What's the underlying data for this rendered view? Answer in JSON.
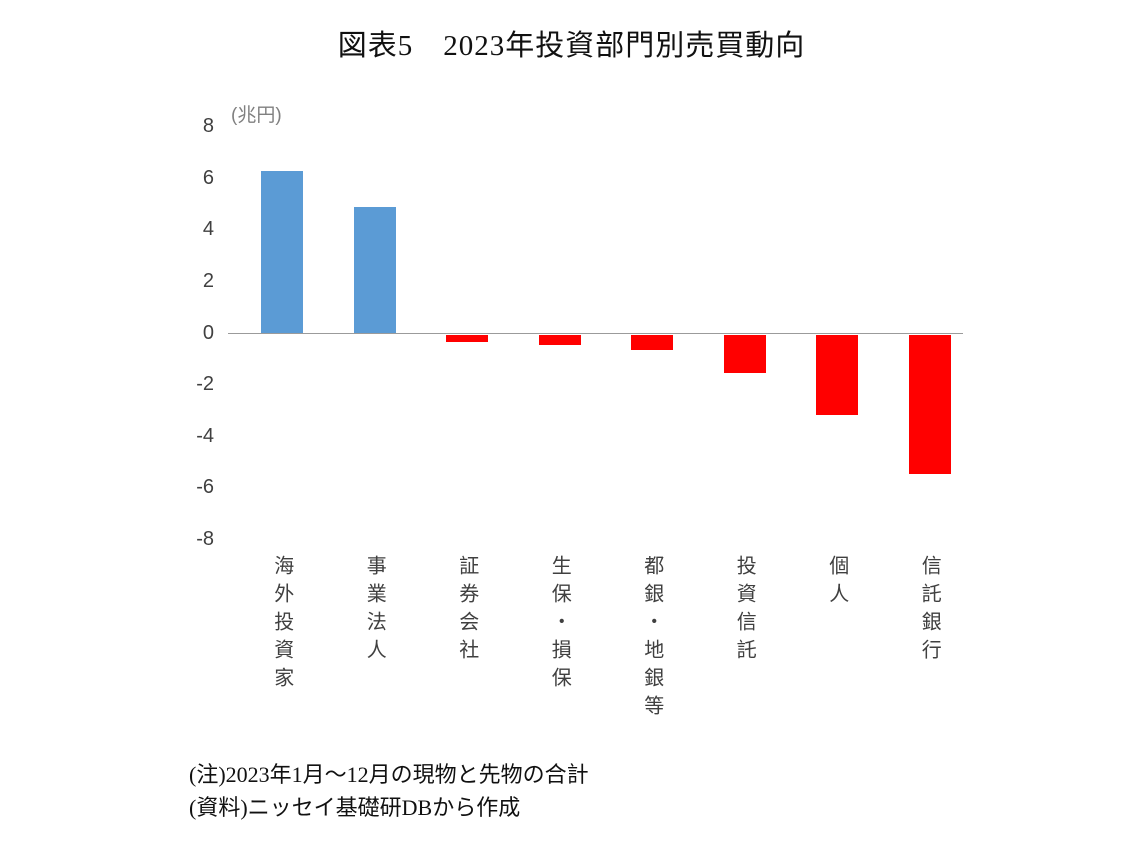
{
  "title": "図表5　2023年投資部門別売買動向",
  "unit_label": "(兆円)",
  "notes": [
    "(注)2023年1月～12月の現物と先物の合計",
    "(資料)ニッセイ基礎研DBから作成"
  ],
  "chart_data": {
    "type": "bar",
    "title": "図表5　2023年投資部門別売買動向",
    "ylabel": "兆円",
    "xlabel": "",
    "categories": [
      "海外投資家",
      "事業法人",
      "証券会社",
      "生保・損保",
      "都銀・地銀等",
      "投資信託",
      "個人",
      "信託銀行"
    ],
    "values": [
      6.3,
      4.9,
      -0.3,
      -0.4,
      -0.6,
      -1.5,
      -3.1,
      -5.4
    ],
    "ylim": [
      -8,
      8
    ],
    "yticks": [
      8,
      6,
      4,
      2,
      0,
      -2,
      -4,
      -6,
      -8
    ],
    "colors": {
      "positive": "#5B9BD5",
      "negative": "#FF0000"
    },
    "grid": false,
    "legend": false
  }
}
